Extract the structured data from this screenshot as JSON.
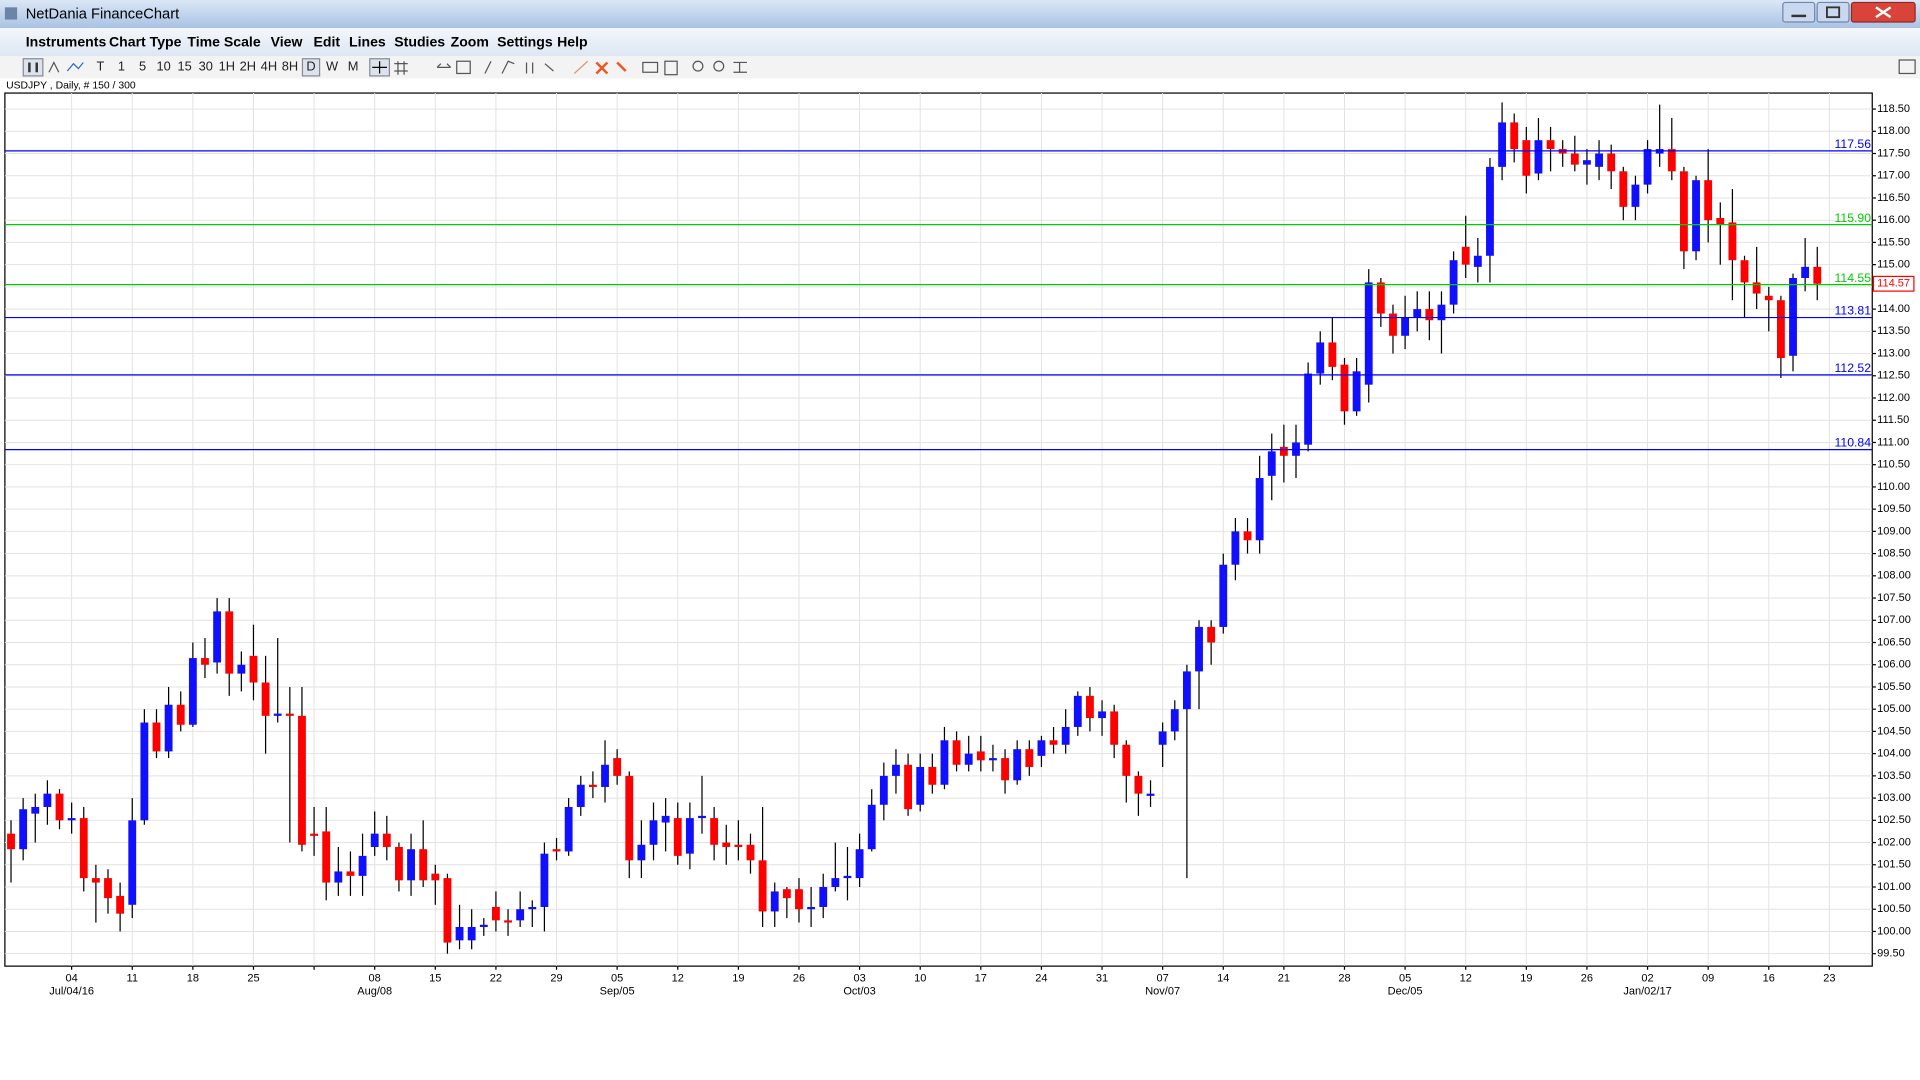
{
  "window": {
    "title": "NetDania FinanceChart",
    "menu": [
      "Instruments",
      "Chart Type",
      "Time Scale",
      "View",
      "Edit",
      "Lines",
      "Studies",
      "Zoom",
      "Settings",
      "Help"
    ],
    "toolbar": [
      "T",
      "1",
      "5",
      "10",
      "15",
      "30",
      "1H",
      "2H",
      "4H",
      "8H",
      "D",
      "W",
      "M"
    ],
    "info": "USDJPY , Daily, # 150 / 300"
  },
  "chart_data": {
    "type": "candlestick",
    "up_color": "#1010ff",
    "down_color": "#ff0000",
    "grid": true,
    "ylim": [
      99.22,
      118.86
    ],
    "yticks": [
      {
        "value": 99.5,
        "label": "99.50"
      },
      {
        "value": 100,
        "label": "100.00"
      },
      {
        "value": 100.5,
        "label": "100.50"
      },
      {
        "value": 101,
        "label": "101.00"
      },
      {
        "value": 101.5,
        "label": "101.50"
      },
      {
        "value": 102,
        "label": "102.00"
      },
      {
        "value": 102.5,
        "label": "102.50"
      },
      {
        "value": 103,
        "label": "103.00"
      },
      {
        "value": 103.5,
        "label": "103.50"
      },
      {
        "value": 104,
        "label": "104.00"
      },
      {
        "value": 104.5,
        "label": "104.50"
      },
      {
        "value": 105,
        "label": "105.00"
      },
      {
        "value": 105.5,
        "label": "105.50"
      },
      {
        "value": 106,
        "label": "106.00"
      },
      {
        "value": 106.5,
        "label": "106.50"
      },
      {
        "value": 107,
        "label": "107.00"
      },
      {
        "value": 107.5,
        "label": "107.50"
      },
      {
        "value": 108,
        "label": "108.00"
      },
      {
        "value": 108.5,
        "label": "108.50"
      },
      {
        "value": 109,
        "label": "109.00"
      },
      {
        "value": 109.5,
        "label": "109.50"
      },
      {
        "value": 110,
        "label": "110.00"
      },
      {
        "value": 110.5,
        "label": "110.50"
      },
      {
        "value": 111,
        "label": "111.00"
      },
      {
        "value": 111.5,
        "label": "111.50"
      },
      {
        "value": 112,
        "label": "112.00"
      },
      {
        "value": 112.5,
        "label": "112.50"
      },
      {
        "value": 113,
        "label": "113.00"
      },
      {
        "value": 113.5,
        "label": "113.50"
      },
      {
        "value": 114,
        "label": "114.00"
      },
      {
        "value": 114.5,
        "label": "114.50"
      },
      {
        "value": 115,
        "label": "115.00"
      },
      {
        "value": 115.5,
        "label": "115.50"
      },
      {
        "value": 116,
        "label": "116.00"
      },
      {
        "value": 116.5,
        "label": "116.50"
      },
      {
        "value": 117,
        "label": "117.00"
      },
      {
        "value": 117.5,
        "label": "117.50"
      },
      {
        "value": 118,
        "label": "118.00"
      },
      {
        "value": 118.5,
        "label": "118.50"
      }
    ],
    "x_axis": {
      "day_labels": [
        "04",
        "11",
        "18",
        "25",
        null,
        "08",
        "15",
        "22",
        "29",
        "05",
        "12",
        "19",
        "26",
        "03",
        "10",
        "17",
        "24",
        "31",
        "07",
        "14",
        "21",
        "28",
        "05",
        "12",
        "19",
        "26",
        "02",
        "09",
        "16",
        "23"
      ],
      "period_labels": [
        "Jul/04/16",
        null,
        null,
        null,
        null,
        "Aug/08",
        null,
        null,
        null,
        "Sep/05",
        null,
        null,
        null,
        "Oct/03",
        null,
        null,
        null,
        null,
        "Nov/07",
        null,
        null,
        null,
        "Dec/05",
        null,
        null,
        null,
        "Jan/02/17",
        null,
        null,
        null
      ]
    },
    "levels": [
      {
        "value": 117.56,
        "color": "#0000ff"
      },
      {
        "value": 115.9,
        "label": "115.90",
        "color": "#00cc00"
      },
      {
        "value": 114.55,
        "color": "#00cc00"
      },
      {
        "value": 113.81,
        "color": "#0000ff"
      },
      {
        "value": 112.52,
        "color": "#0000ff"
      },
      {
        "value": 110.84,
        "color": "#0000ff"
      }
    ],
    "ohlc": {
      "open": [
        102.2,
        101.85,
        102.65,
        102.8,
        103.1,
        102.5,
        102.55,
        101.2,
        101.2,
        100.8,
        100.6,
        102.5,
        104.7,
        104.05,
        105.1,
        104.65,
        106.15,
        106.05,
        107.2,
        105.8,
        106.2,
        105.6,
        104.85,
        104.9,
        104.85,
        102.2,
        102.25,
        101.1,
        101.35,
        101.25,
        101.9,
        102.2,
        101.9,
        101.15,
        101.85,
        101.3,
        101.2,
        99.8,
        99.8,
        100.1,
        100.55,
        100.25,
        100.25,
        100.5,
        100.55,
        101.85,
        101.8,
        102.8,
        103.3,
        103.25,
        103.9,
        103.5,
        101.6,
        101.95,
        102.45,
        102.55,
        101.75,
        102.55,
        102.55,
        102.0,
        101.95,
        101.95,
        101.6,
        100.45,
        100.95,
        100.95,
        100.5,
        100.55,
        101.0,
        101.2,
        101.2,
        101.85,
        102.85,
        103.5,
        103.75,
        102.85,
        103.7,
        103.3,
        104.3,
        103.75,
        104.05,
        103.85,
        103.9,
        103.4,
        104.1,
        103.95,
        104.3,
        104.2,
        104.6,
        105.3,
        104.8,
        104.95,
        104.2,
        103.5,
        103.05,
        104.2,
        104.5,
        105.0,
        105.85,
        106.85,
        106.85,
        108.25,
        109.0,
        108.8,
        110.25,
        110.9,
        110.7,
        110.95,
        112.55,
        113.25,
        112.75,
        111.7,
        112.3,
        114.6,
        113.9,
        113.4,
        113.8,
        114.0,
        113.75,
        114.1,
        115.4,
        114.95,
        115.2,
        117.2,
        118.2,
        117.8,
        117.05,
        117.8,
        117.6,
        117.5,
        117.25,
        117.2,
        117.5,
        117.1,
        116.3,
        116.8,
        117.5,
        117.6,
        117.1,
        115.3,
        116.9,
        116.05,
        115.95,
        115.1,
        114.6,
        114.3,
        114.2,
        112.95,
        114.7,
        114.95
      ],
      "high": [
        102.5,
        103.0,
        103.1,
        103.4,
        103.2,
        102.9,
        102.8,
        101.5,
        101.4,
        101.1,
        103.0,
        105.0,
        105.0,
        105.5,
        105.4,
        106.5,
        106.6,
        107.5,
        107.5,
        106.3,
        106.9,
        106.2,
        106.6,
        105.5,
        105.5,
        102.8,
        102.8,
        101.9,
        101.8,
        102.2,
        102.7,
        102.6,
        102.0,
        102.2,
        102.5,
        101.5,
        101.3,
        100.6,
        100.5,
        100.3,
        100.9,
        100.5,
        100.9,
        100.7,
        102.0,
        102.1,
        103.0,
        103.5,
        103.6,
        104.3,
        104.1,
        103.6,
        102.5,
        102.9,
        103.0,
        102.9,
        102.9,
        103.5,
        102.8,
        102.4,
        102.5,
        102.2,
        102.8,
        101.1,
        101.0,
        101.2,
        101.0,
        101.3,
        102.0,
        101.9,
        102.2,
        103.2,
        103.8,
        104.1,
        104.0,
        104.0,
        104.0,
        104.6,
        104.5,
        104.4,
        104.4,
        104.2,
        104.1,
        104.3,
        104.3,
        104.4,
        104.6,
        105.0,
        105.4,
        105.5,
        105.2,
        105.1,
        104.3,
        103.6,
        103.4,
        104.7,
        105.2,
        106.0,
        107.0,
        107.0,
        108.5,
        109.3,
        109.3,
        110.7,
        111.2,
        111.4,
        111.4,
        112.8,
        113.5,
        113.8,
        112.9,
        112.9,
        114.9,
        114.7,
        114.1,
        114.3,
        114.4,
        114.4,
        114.4,
        115.3,
        116.1,
        115.6,
        117.4,
        118.65,
        118.4,
        118.1,
        118.3,
        118.1,
        117.8,
        117.9,
        117.6,
        117.8,
        117.7,
        117.2,
        117.0,
        117.8,
        118.6,
        118.3,
        117.2,
        117.0,
        117.6,
        116.4,
        116.7,
        115.2,
        115.4,
        114.5,
        114.3,
        114.8,
        115.6,
        115.4
      ],
      "low": [
        101.1,
        101.6,
        102.0,
        102.4,
        102.3,
        102.2,
        100.9,
        100.2,
        100.4,
        100.0,
        100.3,
        102.4,
        103.9,
        103.9,
        104.5,
        104.6,
        105.7,
        105.8,
        105.3,
        105.4,
        105.2,
        104.0,
        104.7,
        102.0,
        101.8,
        101.7,
        100.7,
        100.8,
        100.8,
        100.8,
        101.7,
        101.6,
        100.9,
        100.8,
        101.0,
        100.6,
        99.5,
        99.6,
        99.6,
        99.9,
        100.0,
        99.9,
        100.1,
        100.1,
        100.0,
        101.6,
        101.7,
        102.6,
        103.0,
        102.9,
        103.3,
        101.2,
        101.2,
        101.6,
        101.8,
        101.5,
        101.4,
        102.2,
        101.6,
        101.5,
        101.6,
        101.3,
        100.1,
        100.1,
        100.3,
        100.2,
        100.1,
        100.3,
        100.9,
        100.7,
        101.0,
        101.8,
        102.5,
        103.1,
        102.6,
        102.7,
        103.1,
        103.2,
        103.6,
        103.6,
        103.6,
        103.6,
        103.1,
        103.3,
        103.5,
        103.7,
        104.0,
        104.0,
        104.4,
        104.5,
        104.4,
        103.9,
        102.9,
        102.6,
        102.8,
        103.7,
        104.3,
        101.2,
        105.0,
        106.0,
        106.7,
        107.9,
        108.5,
        108.5,
        109.7,
        110.1,
        110.2,
        110.8,
        112.3,
        112.4,
        111.4,
        111.6,
        111.9,
        113.6,
        113.0,
        113.1,
        113.5,
        113.3,
        113.0,
        113.9,
        114.7,
        114.6,
        114.6,
        116.9,
        117.3,
        116.6,
        116.9,
        117.1,
        117.2,
        117.1,
        116.8,
        116.9,
        116.7,
        116.0,
        116.0,
        116.6,
        117.2,
        116.9,
        114.9,
        115.1,
        115.5,
        115.0,
        114.2,
        113.8,
        114.0,
        113.5,
        112.45,
        112.6,
        114.4,
        114.2
      ],
      "close": [
        101.85,
        102.75,
        102.8,
        103.1,
        102.5,
        102.55,
        101.2,
        101.1,
        100.75,
        100.4,
        102.5,
        104.7,
        104.05,
        105.1,
        104.65,
        106.15,
        106.0,
        107.2,
        105.8,
        106.0,
        105.6,
        104.85,
        104.9,
        104.85,
        101.95,
        102.15,
        101.1,
        101.35,
        101.25,
        101.7,
        102.2,
        101.9,
        101.15,
        101.85,
        101.15,
        101.15,
        99.75,
        100.1,
        100.1,
        100.15,
        100.25,
        100.2,
        100.5,
        100.55,
        101.75,
        101.8,
        102.8,
        103.3,
        103.25,
        103.75,
        103.5,
        101.6,
        101.95,
        102.5,
        102.6,
        101.7,
        102.55,
        102.6,
        101.95,
        101.9,
        101.9,
        101.6,
        100.45,
        100.9,
        100.75,
        100.5,
        100.55,
        101.0,
        101.2,
        101.25,
        101.85,
        102.85,
        103.5,
        103.75,
        102.75,
        103.7,
        103.3,
        104.3,
        103.75,
        104.0,
        103.85,
        103.9,
        103.4,
        104.1,
        103.7,
        104.3,
        104.2,
        104.6,
        105.3,
        104.8,
        104.95,
        104.2,
        103.5,
        103.1,
        103.1,
        104.5,
        105.0,
        105.85,
        106.85,
        106.5,
        108.25,
        109.0,
        108.8,
        110.2,
        110.8,
        110.7,
        111.0,
        112.55,
        113.25,
        112.7,
        111.7,
        112.6,
        114.6,
        113.9,
        113.4,
        113.8,
        114.0,
        113.75,
        114.1,
        115.1,
        115.0,
        115.2,
        117.2,
        118.2,
        117.6,
        117.0,
        117.8,
        117.6,
        117.5,
        117.25,
        117.35,
        117.5,
        117.1,
        116.3,
        116.8,
        117.6,
        117.6,
        117.1,
        115.3,
        116.9,
        116.0,
        115.9,
        115.1,
        114.6,
        114.35,
        114.2,
        112.9,
        114.7,
        114.95,
        114.57
      ]
    }
  }
}
